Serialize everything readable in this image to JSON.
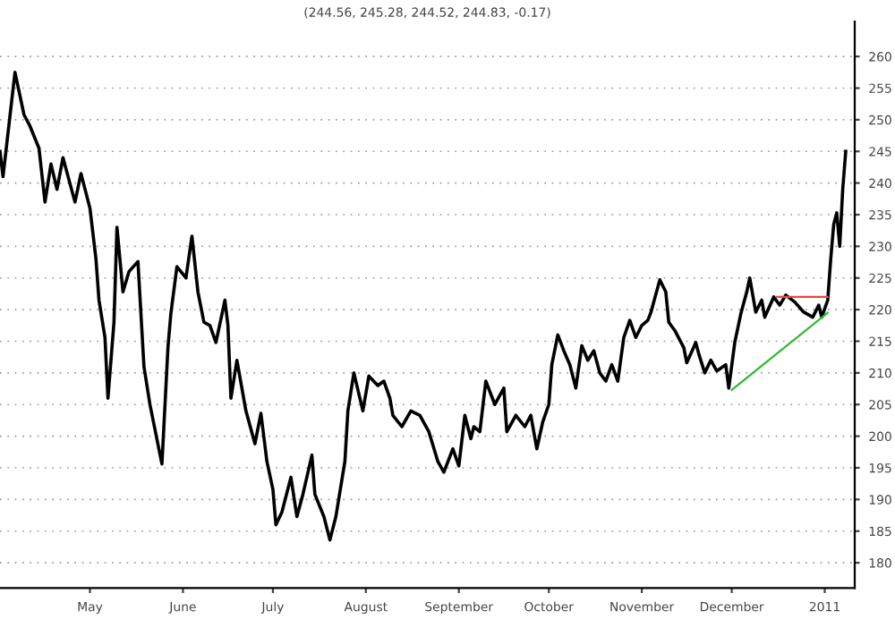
{
  "chart_data": {
    "type": "line",
    "title": "(244.56, 245.28, 244.52, 244.83, -0.17)",
    "xlim": [
      "2010-04-01",
      "2011-01-11"
    ],
    "xticks": [
      {
        "value": "2010-05-01",
        "label": "May"
      },
      {
        "value": "2010-06-01",
        "label": "June"
      },
      {
        "value": "2010-07-01",
        "label": "July"
      },
      {
        "value": "2010-08-01",
        "label": "August"
      },
      {
        "value": "2010-09-01",
        "label": "September"
      },
      {
        "value": "2010-10-01",
        "label": "October"
      },
      {
        "value": "2010-11-01",
        "label": "November"
      },
      {
        "value": "2010-12-01",
        "label": "December"
      },
      {
        "value": "2011-01-01",
        "label": "2011"
      }
    ],
    "ylim": [
      176,
      265.5
    ],
    "yticks": [
      180,
      185,
      190,
      195,
      200,
      205,
      210,
      215,
      220,
      225,
      230,
      235,
      240,
      245,
      250,
      255,
      260
    ],
    "grid": "y",
    "line_style": "solid",
    "series": [
      {
        "color": "#000000",
        "x": [
          "2010-04-01",
          "2010-04-02",
          "2010-04-06",
          "2010-04-09",
          "2010-04-11",
          "2010-04-14",
          "2010-04-16",
          "2010-04-18",
          "2010-04-20",
          "2010-04-22",
          "2010-04-26",
          "2010-04-28",
          "2010-05-01",
          "2010-05-03",
          "2010-05-04",
          "2010-05-06",
          "2010-05-07",
          "2010-05-09",
          "2010-05-10",
          "2010-05-12",
          "2010-05-14",
          "2010-05-17",
          "2010-05-19",
          "2010-05-21",
          "2010-05-25",
          "2010-05-27",
          "2010-05-28",
          "2010-05-30",
          "2010-06-02",
          "2010-06-04",
          "2010-06-06",
          "2010-06-08",
          "2010-06-10",
          "2010-06-12",
          "2010-06-15",
          "2010-06-16",
          "2010-06-17",
          "2010-06-19",
          "2010-06-22",
          "2010-06-25",
          "2010-06-27",
          "2010-06-29",
          "2010-07-01",
          "2010-07-02",
          "2010-07-04",
          "2010-07-07",
          "2010-07-09",
          "2010-07-11",
          "2010-07-14",
          "2010-07-15",
          "2010-07-18",
          "2010-07-20",
          "2010-07-22",
          "2010-07-25",
          "2010-07-26",
          "2010-07-28",
          "2010-07-31",
          "2010-08-02",
          "2010-08-05",
          "2010-08-07",
          "2010-08-09",
          "2010-08-10",
          "2010-08-13",
          "2010-08-16",
          "2010-08-19",
          "2010-08-22",
          "2010-08-25",
          "2010-08-27",
          "2010-08-30",
          "2010-09-01",
          "2010-09-03",
          "2010-09-05",
          "2010-09-06",
          "2010-09-08",
          "2010-09-10",
          "2010-09-13",
          "2010-09-16",
          "2010-09-17",
          "2010-09-20",
          "2010-09-23",
          "2010-09-25",
          "2010-09-27",
          "2010-09-29",
          "2010-10-01",
          "2010-10-02",
          "2010-10-04",
          "2010-10-06",
          "2010-10-08",
          "2010-10-10",
          "2010-10-12",
          "2010-10-14",
          "2010-10-16",
          "2010-10-18",
          "2010-10-20",
          "2010-10-22",
          "2010-10-24",
          "2010-10-26",
          "2010-10-28",
          "2010-10-30",
          "2010-11-01",
          "2010-11-03",
          "2010-11-04",
          "2010-11-07",
          "2010-11-09",
          "2010-11-10",
          "2010-11-12",
          "2010-11-15",
          "2010-11-16",
          "2010-11-19",
          "2010-11-20",
          "2010-11-22",
          "2010-11-24",
          "2010-11-26",
          "2010-11-29",
          "2010-11-30",
          "2010-12-02",
          "2010-12-04",
          "2010-12-06",
          "2010-12-07",
          "2010-12-09",
          "2010-12-11",
          "2010-12-12",
          "2010-12-15",
          "2010-12-17",
          "2010-12-19",
          "2010-12-22",
          "2010-12-25",
          "2010-12-28",
          "2010-12-30",
          "2010-12-31",
          "2011-01-02",
          "2011-01-03",
          "2011-01-04",
          "2011-01-05",
          "2011-01-06",
          "2011-01-07",
          "2011-01-08"
        ],
        "values": [
          245,
          241,
          257.5,
          250.8,
          249,
          245.5,
          237,
          243,
          239,
          244,
          237,
          241.5,
          236,
          228,
          221.5,
          215.6,
          206,
          218,
          233,
          222.8,
          226,
          227.6,
          211,
          205,
          195.6,
          214,
          219.5,
          226.8,
          225,
          231.6,
          222.8,
          218,
          217.5,
          214.8,
          221.5,
          217.5,
          206,
          212,
          204,
          198.8,
          203.6,
          196,
          191.6,
          186,
          188,
          193.5,
          187.3,
          190.8,
          197,
          190.8,
          187.3,
          183.6,
          187.3,
          196,
          204,
          210,
          204,
          209.5,
          208,
          208.7,
          206,
          203.3,
          201.5,
          204,
          203.3,
          200.7,
          196,
          194.3,
          198,
          195.3,
          203.3,
          199.6,
          201.5,
          200.7,
          208.7,
          205,
          207.6,
          200.7,
          203.3,
          201.5,
          203.3,
          198,
          202.3,
          205,
          211.3,
          216,
          213.5,
          211.3,
          207.6,
          214.3,
          212,
          213.5,
          210,
          208.7,
          211.3,
          208.7,
          215.6,
          218.3,
          215.6,
          217.5,
          218.3,
          219.5,
          224.7,
          222.8,
          218,
          216.7,
          214,
          211.6,
          214.8,
          213,
          210,
          212,
          210.3,
          211.3,
          207.6,
          214.8,
          219.3,
          222.8,
          225,
          219.6,
          221.5,
          218.8,
          222,
          220.7,
          222.3,
          221.2,
          219.6,
          218.8,
          220.7,
          218.8,
          221.5,
          228,
          233.5,
          235.3,
          230,
          239,
          245
        ]
      },
      {
        "color": "#33bb33",
        "x": [
          "2010-12-01",
          "2011-01-02"
        ],
        "values": [
          207.3,
          219.5
        ]
      },
      {
        "color": "#ee4444",
        "x": [
          "2010-12-16",
          "2011-01-02"
        ],
        "values": [
          222,
          222
        ]
      }
    ]
  }
}
